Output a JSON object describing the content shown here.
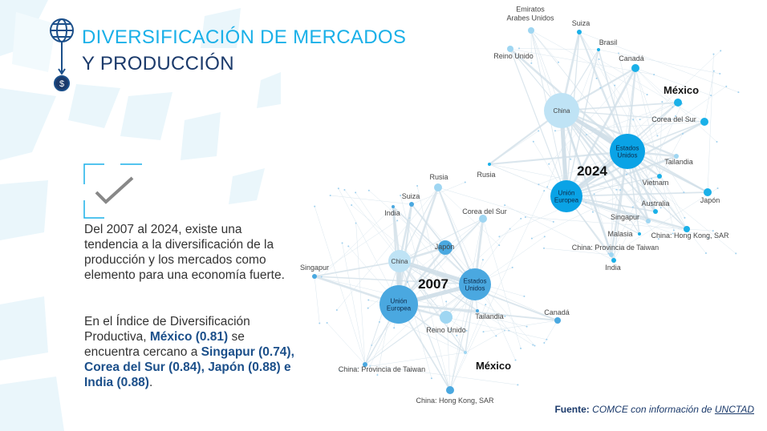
{
  "header": {
    "title_lines": [
      "DIVERSIFICACIÓN DE MERCADOS",
      "Y PRODUCCIÓN"
    ]
  },
  "body": {
    "paragraph_1": "Del 2007 al 2024, existe una tendencia a la diversificación de la producción y los mercados como elemento para una economía fuerte.",
    "paragraph_2": [
      {
        "text": "En el Índice de Diversificación Productiva, ",
        "bold": false
      },
      {
        "text": "México (0.81)",
        "bold": true
      },
      {
        "text": " se encuentra cercano a ",
        "bold": false
      },
      {
        "text": "Singapur (0.74), Corea del Sur (0.84), Japón (0.88) e India (0.88)",
        "bold": true
      },
      {
        "text": ".",
        "bold": false
      }
    ]
  },
  "networks": [
    {
      "year": "2024",
      "nodes": [
        {
          "label": [
            "Emiratos",
            "Arabes Unidos"
          ]
        },
        {
          "label": [
            "Suiza"
          ]
        },
        {
          "label": [
            "Brasil"
          ]
        },
        {
          "label": [
            "Reino Unido"
          ]
        },
        {
          "label": [
            "Canadá"
          ]
        },
        {
          "label": [
            "México"
          ]
        },
        {
          "label": [
            "China"
          ]
        },
        {
          "label": [
            "Corea del Sur"
          ]
        },
        {
          "label": [
            "Estados",
            "Unidos"
          ]
        },
        {
          "label": [
            "Tailandia"
          ]
        },
        {
          "label": [
            "Rusia"
          ]
        },
        {
          "label": [
            "Vietnam"
          ]
        },
        {
          "label": [
            "Unión",
            "Europea"
          ]
        },
        {
          "label": [
            "Japón"
          ]
        },
        {
          "label": [
            "Australia"
          ]
        },
        {
          "label": [
            "Singapur"
          ]
        },
        {
          "label": [
            "Malasia"
          ]
        },
        {
          "label": [
            "China: Hong Kong, SAR"
          ]
        },
        {
          "label": [
            "China: Provincia de Taiwan"
          ]
        },
        {
          "label": [
            "India"
          ]
        }
      ]
    },
    {
      "year": "2007",
      "nodes": [
        {
          "label": [
            "Rusia"
          ]
        },
        {
          "label": [
            "Suiza"
          ]
        },
        {
          "label": [
            "India"
          ]
        },
        {
          "label": [
            "Corea del Sur"
          ]
        },
        {
          "label": [
            "Japón"
          ]
        },
        {
          "label": [
            "Singapur"
          ]
        },
        {
          "label": [
            "China"
          ]
        },
        {
          "label": [
            "Estados",
            "Unidos"
          ]
        },
        {
          "label": [
            "Unión",
            "Europea"
          ]
        },
        {
          "label": [
            "Reino Unido"
          ]
        },
        {
          "label": [
            "Tailandia"
          ]
        },
        {
          "label": [
            "Canadá"
          ]
        },
        {
          "label": [
            "México"
          ]
        },
        {
          "label": [
            "China: Provincia de Taiwan"
          ]
        },
        {
          "label": [
            "China: Hong Kong, SAR"
          ]
        }
      ]
    }
  ],
  "footer": {
    "source_label": "Fuente:",
    "source_text": "COMCE con información de",
    "source_link": "UNCTAD"
  }
}
